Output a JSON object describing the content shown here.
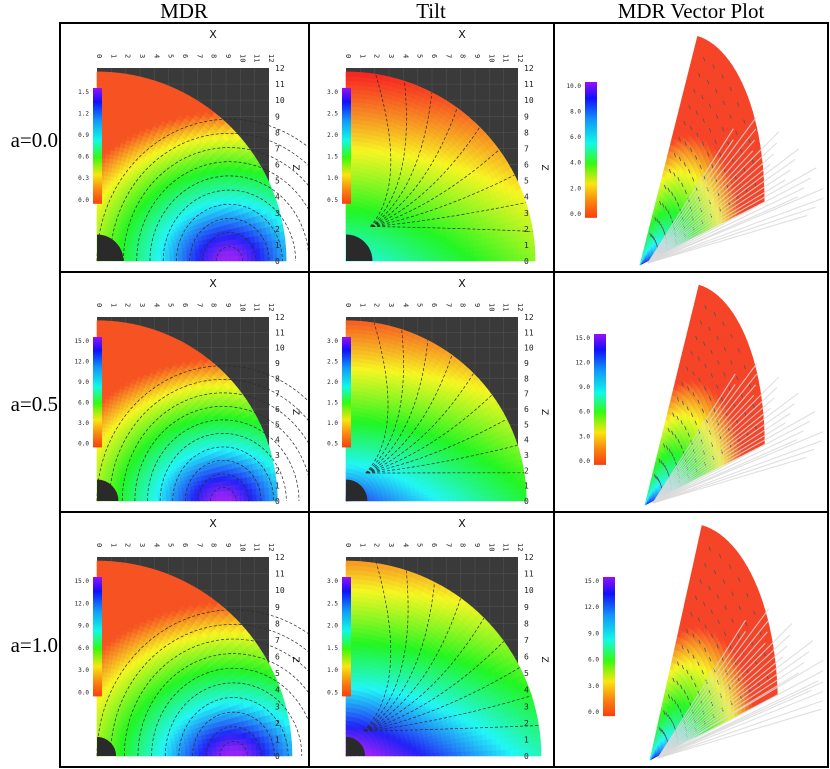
{
  "columns": [
    "MDR",
    "Tilt",
    "MDR Vector Plot"
  ],
  "rows": [
    "a=0.0",
    "a=0.5",
    "a=1.0"
  ],
  "axes": {
    "x_label": "X",
    "z_label": "Z",
    "x_ticks": [
      "0",
      "1",
      "2",
      "3",
      "4",
      "5",
      "6",
      "7",
      "8",
      "9",
      "10",
      "11",
      "12"
    ],
    "z_ticks": [
      "12",
      "11",
      "10",
      "9",
      "8",
      "7",
      "6",
      "5",
      "4",
      "3",
      "2",
      "1",
      "0"
    ]
  },
  "colorbars": {
    "mdr": [
      [
        "1.5",
        "1.2",
        "0.9",
        "0.6",
        "0.3",
        "0.0"
      ],
      [
        "15.0",
        "12.0",
        "9.0",
        "6.0",
        "3.0",
        "0.0"
      ],
      [
        "15.0",
        "12.0",
        "9.0",
        "6.0",
        "3.0",
        "0.0"
      ]
    ],
    "tilt": [
      [
        "3.0",
        "2.5",
        "2.0",
        "1.5",
        "1.0",
        "0.5"
      ],
      [
        "3.0",
        "2.5",
        "2.0",
        "1.5",
        "1.0",
        "0.5"
      ],
      [
        "3.0",
        "2.5",
        "2.0",
        "1.5",
        "1.0",
        "0.5"
      ]
    ],
    "vector": [
      [
        "10.0",
        "8.0",
        "6.0",
        "4.0",
        "2.0",
        "0.0"
      ],
      [
        "15.0",
        "12.0",
        "9.0",
        "6.0",
        "3.0",
        "0.0"
      ],
      [
        "15.0",
        "12.0",
        "9.0",
        "6.0",
        "3.0",
        "0.0"
      ]
    ]
  },
  "colors": {
    "grid": "#000000",
    "frame_bg": "#3a3a3a",
    "axis_label": "#c8c87a",
    "contour": "#2b2b2b"
  }
}
